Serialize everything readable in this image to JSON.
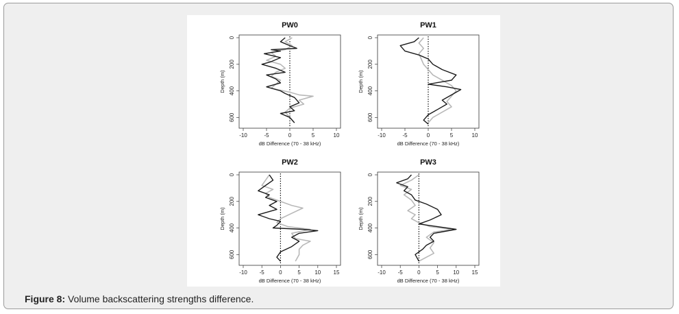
{
  "caption": {
    "label": "Figure 8:",
    "text": " Volume backscattering strengths difference."
  },
  "colors": {
    "series_dark": "#1a1a1a",
    "series_light": "#b8b8b8",
    "frame_bg": "#efefef"
  },
  "chart_data": [
    {
      "type": "line",
      "title": "PW0",
      "xlabel": "dB Difference (70 - 38 kHz)",
      "ylabel": "Depth (m)",
      "xlim": [
        -10,
        10
      ],
      "ylim": [
        0,
        650
      ],
      "xticks": [
        -10,
        -5,
        0,
        5,
        10
      ],
      "yticks": [
        0,
        200,
        400,
        600
      ],
      "reference_line_x": 0,
      "series": [
        {
          "name": "dark",
          "points": [
            [
              -1,
              0
            ],
            [
              -2,
              30
            ],
            [
              0,
              60
            ],
            [
              1.5,
              80
            ],
            [
              -4,
              90
            ],
            [
              -2,
              100
            ],
            [
              -5.5,
              120
            ],
            [
              -2,
              150
            ],
            [
              -4,
              180
            ],
            [
              -6,
              200
            ],
            [
              -3,
              230
            ],
            [
              -1,
              260
            ],
            [
              -5,
              280
            ],
            [
              -3,
              310
            ],
            [
              -2,
              340
            ],
            [
              -5,
              370
            ],
            [
              -2,
              400
            ],
            [
              -1,
              420
            ],
            [
              1,
              450
            ],
            [
              2,
              490
            ],
            [
              0,
              520
            ],
            [
              1,
              550
            ],
            [
              -2,
              570
            ],
            [
              0,
              600
            ],
            [
              1,
              640
            ]
          ]
        },
        {
          "name": "light",
          "points": [
            [
              0.5,
              0
            ],
            [
              -1,
              30
            ],
            [
              0.5,
              60
            ],
            [
              -1,
              90
            ],
            [
              -4,
              110
            ],
            [
              -3,
              140
            ],
            [
              -5,
              170
            ],
            [
              -2,
              200
            ],
            [
              -1,
              230
            ],
            [
              -3,
              260
            ],
            [
              -4,
              290
            ],
            [
              -2,
              320
            ],
            [
              -3,
              350
            ],
            [
              -4,
              380
            ],
            [
              0,
              410
            ],
            [
              2,
              430
            ],
            [
              5,
              440
            ],
            [
              2,
              470
            ],
            [
              3,
              500
            ],
            [
              0,
              530
            ],
            [
              -1,
              560
            ],
            [
              0,
              600
            ],
            [
              1,
              640
            ]
          ]
        }
      ]
    },
    {
      "type": "line",
      "title": "PW1",
      "xlabel": "dB Difference (70 - 38 kHz)",
      "ylabel": "Depth (m)",
      "xlim": [
        -10,
        10
      ],
      "ylim": [
        0,
        650
      ],
      "xticks": [
        -10,
        -5,
        0,
        5,
        10
      ],
      "yticks": [
        0,
        200,
        400,
        600
      ],
      "reference_line_x": 0,
      "series": [
        {
          "name": "dark",
          "points": [
            [
              -2,
              0
            ],
            [
              -3,
              30
            ],
            [
              -6,
              60
            ],
            [
              -5,
              100
            ],
            [
              -2,
              130
            ],
            [
              0,
              160
            ],
            [
              1,
              200
            ],
            [
              3,
              240
            ],
            [
              6,
              280
            ],
            [
              5,
              320
            ],
            [
              0,
              350
            ],
            [
              4,
              370
            ],
            [
              7,
              390
            ],
            [
              5,
              430
            ],
            [
              3,
              470
            ],
            [
              4,
              500
            ],
            [
              2,
              540
            ],
            [
              0,
              580
            ],
            [
              -1,
              620
            ],
            [
              0,
              650
            ]
          ]
        },
        {
          "name": "light",
          "points": [
            [
              -1,
              0
            ],
            [
              -2,
              40
            ],
            [
              -1,
              80
            ],
            [
              -2,
              120
            ],
            [
              -1.5,
              160
            ],
            [
              -1,
              200
            ],
            [
              0,
              240
            ],
            [
              1,
              280
            ],
            [
              3,
              320
            ],
            [
              5,
              360
            ],
            [
              6,
              400
            ],
            [
              5,
              440
            ],
            [
              4,
              480
            ],
            [
              5,
              520
            ],
            [
              3,
              560
            ],
            [
              1,
              600
            ],
            [
              0,
              640
            ]
          ]
        }
      ]
    },
    {
      "type": "line",
      "title": "PW2",
      "xlabel": "dB Difference (70 - 38 kHz)",
      "ylabel": "Depth (m)",
      "xlim": [
        -10,
        15
      ],
      "ylim": [
        0,
        650
      ],
      "xticks": [
        -10,
        -5,
        0,
        5,
        10,
        15
      ],
      "yticks": [
        0,
        200,
        400,
        600
      ],
      "reference_line_x": 0,
      "series": [
        {
          "name": "dark",
          "points": [
            [
              -3,
              0
            ],
            [
              -2,
              40
            ],
            [
              -4,
              80
            ],
            [
              -6,
              120
            ],
            [
              -3,
              150
            ],
            [
              -4,
              170
            ],
            [
              -1,
              200
            ],
            [
              -3,
              230
            ],
            [
              -1,
              260
            ],
            [
              -6,
              300
            ],
            [
              -3,
              330
            ],
            [
              0,
              350
            ],
            [
              -1,
              380
            ],
            [
              -2,
              400
            ],
            [
              6,
              410
            ],
            [
              10,
              420
            ],
            [
              5,
              440
            ],
            [
              3,
              470
            ],
            [
              5,
              500
            ],
            [
              3,
              540
            ],
            [
              0,
              580
            ],
            [
              -1,
              620
            ],
            [
              0,
              650
            ]
          ]
        },
        {
          "name": "light",
          "points": [
            [
              -3,
              0
            ],
            [
              -4,
              40
            ],
            [
              -5,
              80
            ],
            [
              -2,
              110
            ],
            [
              -4,
              140
            ],
            [
              -3,
              170
            ],
            [
              0,
              200
            ],
            [
              3,
              230
            ],
            [
              6,
              250
            ],
            [
              3,
              290
            ],
            [
              0,
              330
            ],
            [
              -1,
              360
            ],
            [
              2,
              390
            ],
            [
              8,
              410
            ],
            [
              3,
              440
            ],
            [
              4,
              480
            ],
            [
              8,
              500
            ],
            [
              6,
              530
            ],
            [
              5,
              560
            ],
            [
              5,
              600
            ],
            [
              4,
              650
            ]
          ]
        }
      ]
    },
    {
      "type": "line",
      "title": "PW3",
      "xlabel": "dB Difference (70 - 38 kHz)",
      "ylabel": "Depth (m)",
      "xlim": [
        -10,
        15
      ],
      "ylim": [
        0,
        650
      ],
      "xticks": [
        -10,
        -5,
        0,
        5,
        10,
        15
      ],
      "yticks": [
        0,
        200,
        400,
        600
      ],
      "reference_line_x": 0,
      "series": [
        {
          "name": "dark",
          "points": [
            [
              -2,
              0
            ],
            [
              -3,
              30
            ],
            [
              -6,
              60
            ],
            [
              -3,
              90
            ],
            [
              -4,
              120
            ],
            [
              -2,
              150
            ],
            [
              -1,
              190
            ],
            [
              2,
              220
            ],
            [
              5,
              260
            ],
            [
              6,
              300
            ],
            [
              3,
              340
            ],
            [
              0,
              370
            ],
            [
              5,
              390
            ],
            [
              10,
              410
            ],
            [
              4,
              440
            ],
            [
              3,
              470
            ],
            [
              4,
              500
            ],
            [
              2,
              530
            ],
            [
              1,
              560
            ],
            [
              -1,
              600
            ],
            [
              0,
              650
            ]
          ]
        },
        {
          "name": "light",
          "points": [
            [
              0,
              0
            ],
            [
              -2,
              40
            ],
            [
              -5,
              80
            ],
            [
              -2,
              110
            ],
            [
              -4,
              150
            ],
            [
              -2,
              190
            ],
            [
              -1,
              230
            ],
            [
              -3,
              270
            ],
            [
              -1,
              300
            ],
            [
              -2,
              330
            ],
            [
              0,
              360
            ],
            [
              3,
              390
            ],
            [
              9,
              410
            ],
            [
              4,
              430
            ],
            [
              2,
              470
            ],
            [
              4,
              510
            ],
            [
              3,
              550
            ],
            [
              4,
              590
            ],
            [
              2,
              620
            ],
            [
              0,
              650
            ]
          ]
        }
      ]
    }
  ]
}
